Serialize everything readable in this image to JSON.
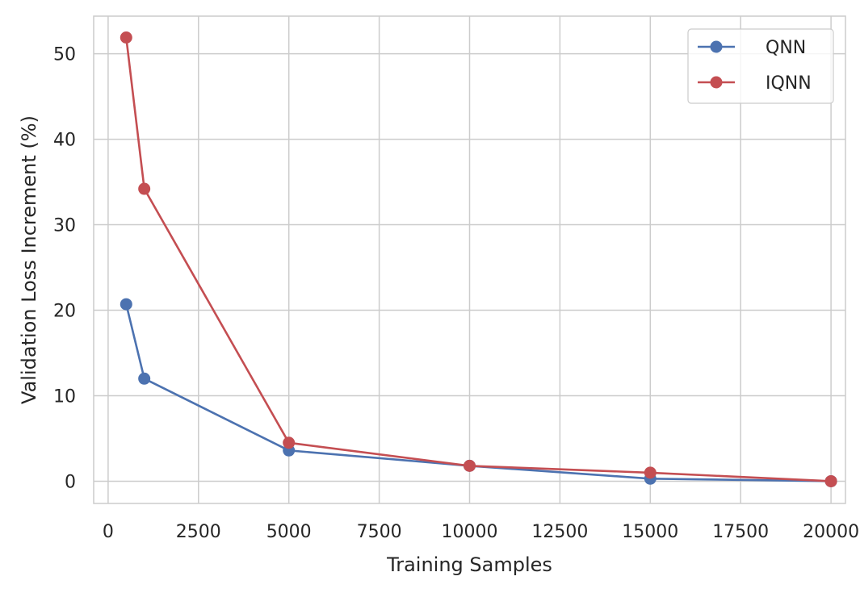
{
  "chart_data": {
    "type": "line",
    "xlabel": "Training Samples",
    "ylabel": "Validation Loss Increment (%)",
    "xlim": [
      -400,
      20400
    ],
    "ylim": [
      -2.6,
      54.4
    ],
    "xticks": [
      0,
      2500,
      5000,
      7500,
      10000,
      12500,
      15000,
      17500,
      20000
    ],
    "yticks": [
      0,
      10,
      20,
      30,
      40,
      50
    ],
    "grid": true,
    "legend_position": "top-right",
    "x": [
      500,
      1000,
      5000,
      10000,
      15000,
      20000
    ],
    "series": [
      {
        "name": "QNN",
        "color": "#4c72b0",
        "marker": "circle",
        "values": [
          20.7,
          12.0,
          3.6,
          1.8,
          0.3,
          0.0
        ]
      },
      {
        "name": "IQNN",
        "color": "#c44e52",
        "marker": "circle",
        "values": [
          51.9,
          34.2,
          4.5,
          1.8,
          1.0,
          0.0
        ]
      }
    ]
  }
}
